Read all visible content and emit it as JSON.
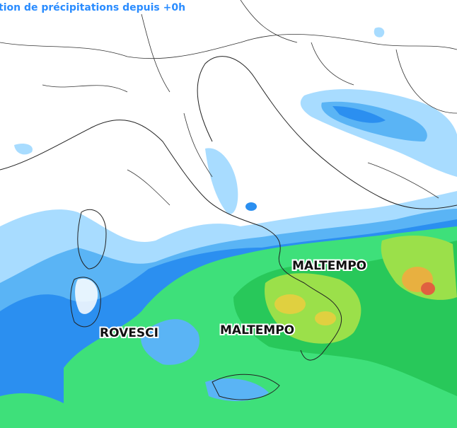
{
  "header": {
    "title": "tion de précipitations depuis +0h"
  },
  "labels": [
    {
      "text": "MALTEMPO"
    },
    {
      "text": "ROVESCI"
    },
    {
      "text": "MALTEMPO"
    }
  ]
}
